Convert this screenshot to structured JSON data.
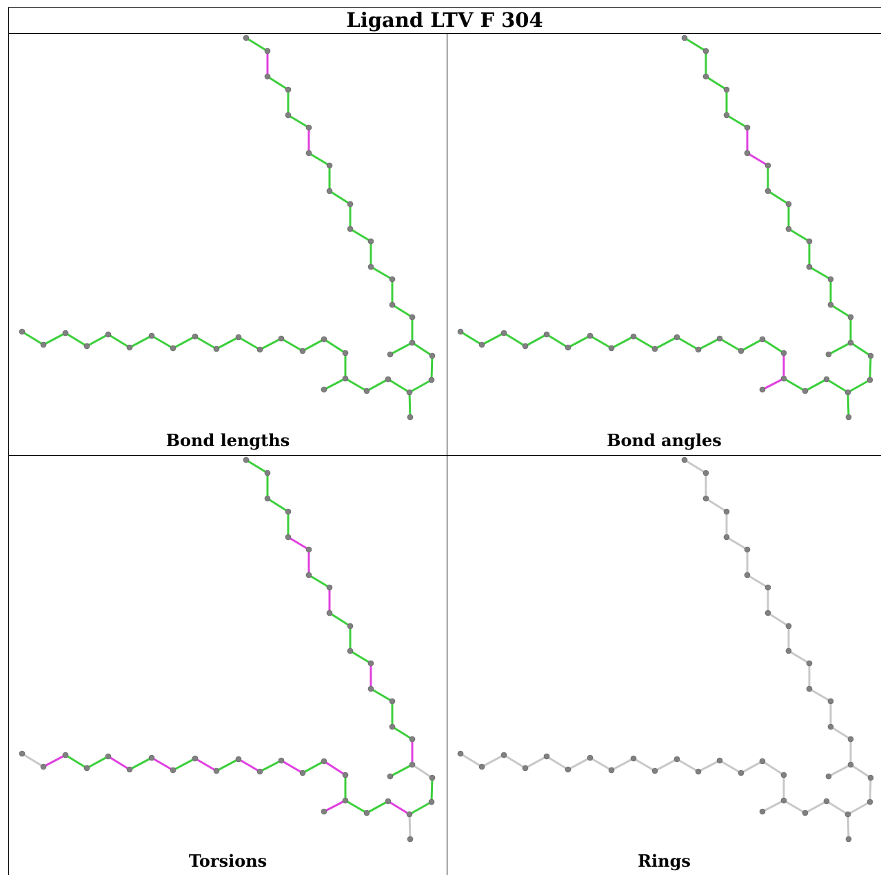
{
  "title": "Ligand LTV F 304",
  "colors": {
    "green": "#3ccf3c",
    "magenta": "#e040e0",
    "gray": "#c8c8c8",
    "atom": "#808080"
  },
  "panels": [
    {
      "caption": "Bond lengths",
      "magenta_bonds": [
        [
          17,
          18
        ],
        [
          34,
          35
        ],
        [
          38,
          39
        ]
      ],
      "gray_bonds": []
    },
    {
      "caption": "Bond angles",
      "magenta_bonds": [
        [
          15,
          16
        ],
        [
          16,
          17
        ],
        [
          33,
          34
        ],
        [
          34,
          35
        ]
      ],
      "gray_bonds": []
    },
    {
      "caption": "Torsions",
      "magenta_bonds": [
        [
          1,
          2
        ],
        [
          4,
          5
        ],
        [
          6,
          7
        ],
        [
          8,
          9
        ],
        [
          10,
          11
        ],
        [
          12,
          13
        ],
        [
          14,
          15
        ],
        [
          16,
          17
        ],
        [
          17,
          18
        ],
        [
          19,
          20
        ],
        [
          21,
          22
        ],
        [
          24,
          25
        ],
        [
          28,
          29
        ],
        [
          32,
          33
        ],
        [
          34,
          35
        ],
        [
          35,
          36
        ]
      ],
      "gray_bonds": [
        [
          0,
          1
        ],
        [
          23,
          24
        ],
        [
          17,
          40
        ],
        [
          33,
          38
        ],
        [
          20,
          21
        ]
      ]
    },
    {
      "caption": "Rings",
      "magenta_bonds": [],
      "gray_bonds": "all"
    }
  ]
}
